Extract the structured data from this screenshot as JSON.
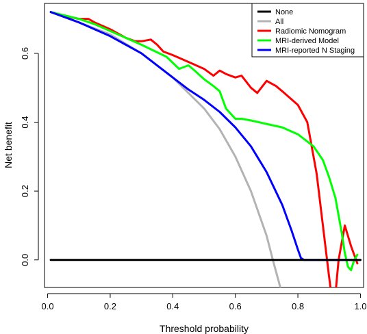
{
  "chart_data": {
    "type": "line",
    "title": "",
    "xlabel": "Threshold probability",
    "ylabel": "Net benefit",
    "xlim": [
      -0.01,
      1.01
    ],
    "ylim": [
      -0.08,
      0.745
    ],
    "xticks": [
      0.0,
      0.2,
      0.4,
      0.6,
      0.8,
      1.0
    ],
    "xtick_labels": [
      "0.0",
      "0.2",
      "0.4",
      "0.6",
      "0.8",
      "1.0"
    ],
    "yticks": [
      0.0,
      0.2,
      0.4,
      0.6
    ],
    "ytick_labels": [
      "0.0",
      "0.2",
      "0.4",
      "0.6"
    ],
    "grid": false,
    "legend_position": "top-right",
    "series": [
      {
        "name": "None",
        "color": "#000000",
        "x": [
          0.01,
          1.0
        ],
        "y": [
          0.0,
          0.0
        ]
      },
      {
        "name": "All",
        "color": "#b3b3b3",
        "x": [
          0.01,
          0.1,
          0.2,
          0.3,
          0.4,
          0.5,
          0.55,
          0.6,
          0.65,
          0.7,
          0.72,
          0.75
        ],
        "y": [
          0.72,
          0.69,
          0.655,
          0.6,
          0.53,
          0.44,
          0.38,
          0.3,
          0.2,
          0.07,
          0.0,
          -0.1
        ]
      },
      {
        "name": "Radiomic Nomogram",
        "color": "#ff0000",
        "x": [
          0.01,
          0.05,
          0.1,
          0.13,
          0.15,
          0.2,
          0.25,
          0.28,
          0.3,
          0.33,
          0.35,
          0.37,
          0.4,
          0.45,
          0.5,
          0.53,
          0.55,
          0.57,
          0.6,
          0.62,
          0.65,
          0.67,
          0.7,
          0.73,
          0.75,
          0.8,
          0.83,
          0.86,
          0.88,
          0.9,
          0.91,
          0.92,
          0.93,
          0.95,
          0.97,
          0.99
        ],
        "y": [
          0.72,
          0.71,
          0.7,
          0.7,
          0.69,
          0.67,
          0.645,
          0.635,
          0.635,
          0.64,
          0.625,
          0.605,
          0.595,
          0.575,
          0.555,
          0.535,
          0.55,
          0.54,
          0.53,
          0.535,
          0.5,
          0.485,
          0.52,
          0.505,
          0.49,
          0.45,
          0.4,
          0.25,
          0.1,
          -0.05,
          -0.12,
          -0.1,
          0.0,
          0.1,
          0.04,
          -0.01
        ]
      },
      {
        "name": "MRI-derived Model",
        "color": "#00ff00",
        "x": [
          0.01,
          0.1,
          0.15,
          0.2,
          0.3,
          0.38,
          0.42,
          0.45,
          0.47,
          0.5,
          0.53,
          0.55,
          0.57,
          0.58,
          0.6,
          0.62,
          0.65,
          0.7,
          0.75,
          0.8,
          0.85,
          0.88,
          0.9,
          0.92,
          0.94,
          0.95,
          0.96,
          0.97,
          0.98,
          0.99
        ],
        "y": [
          0.72,
          0.7,
          0.685,
          0.665,
          0.625,
          0.59,
          0.555,
          0.565,
          0.55,
          0.525,
          0.505,
          0.49,
          0.44,
          0.43,
          0.41,
          0.41,
          0.405,
          0.395,
          0.385,
          0.365,
          0.33,
          0.29,
          0.24,
          0.18,
          0.08,
          0.02,
          -0.02,
          -0.03,
          0.0,
          0.015
        ]
      },
      {
        "name": "MRI-reported N Staging",
        "color": "#0000ff",
        "x": [
          0.01,
          0.1,
          0.2,
          0.3,
          0.4,
          0.45,
          0.5,
          0.55,
          0.6,
          0.65,
          0.7,
          0.75,
          0.78,
          0.8,
          0.81,
          0.82,
          0.85,
          0.9,
          0.95,
          1.0
        ],
        "y": [
          0.72,
          0.69,
          0.65,
          0.6,
          0.53,
          0.495,
          0.465,
          0.43,
          0.385,
          0.33,
          0.255,
          0.16,
          0.085,
          0.03,
          0.005,
          0.0,
          0.0,
          0.0,
          0.0,
          0.0
        ]
      }
    ]
  }
}
